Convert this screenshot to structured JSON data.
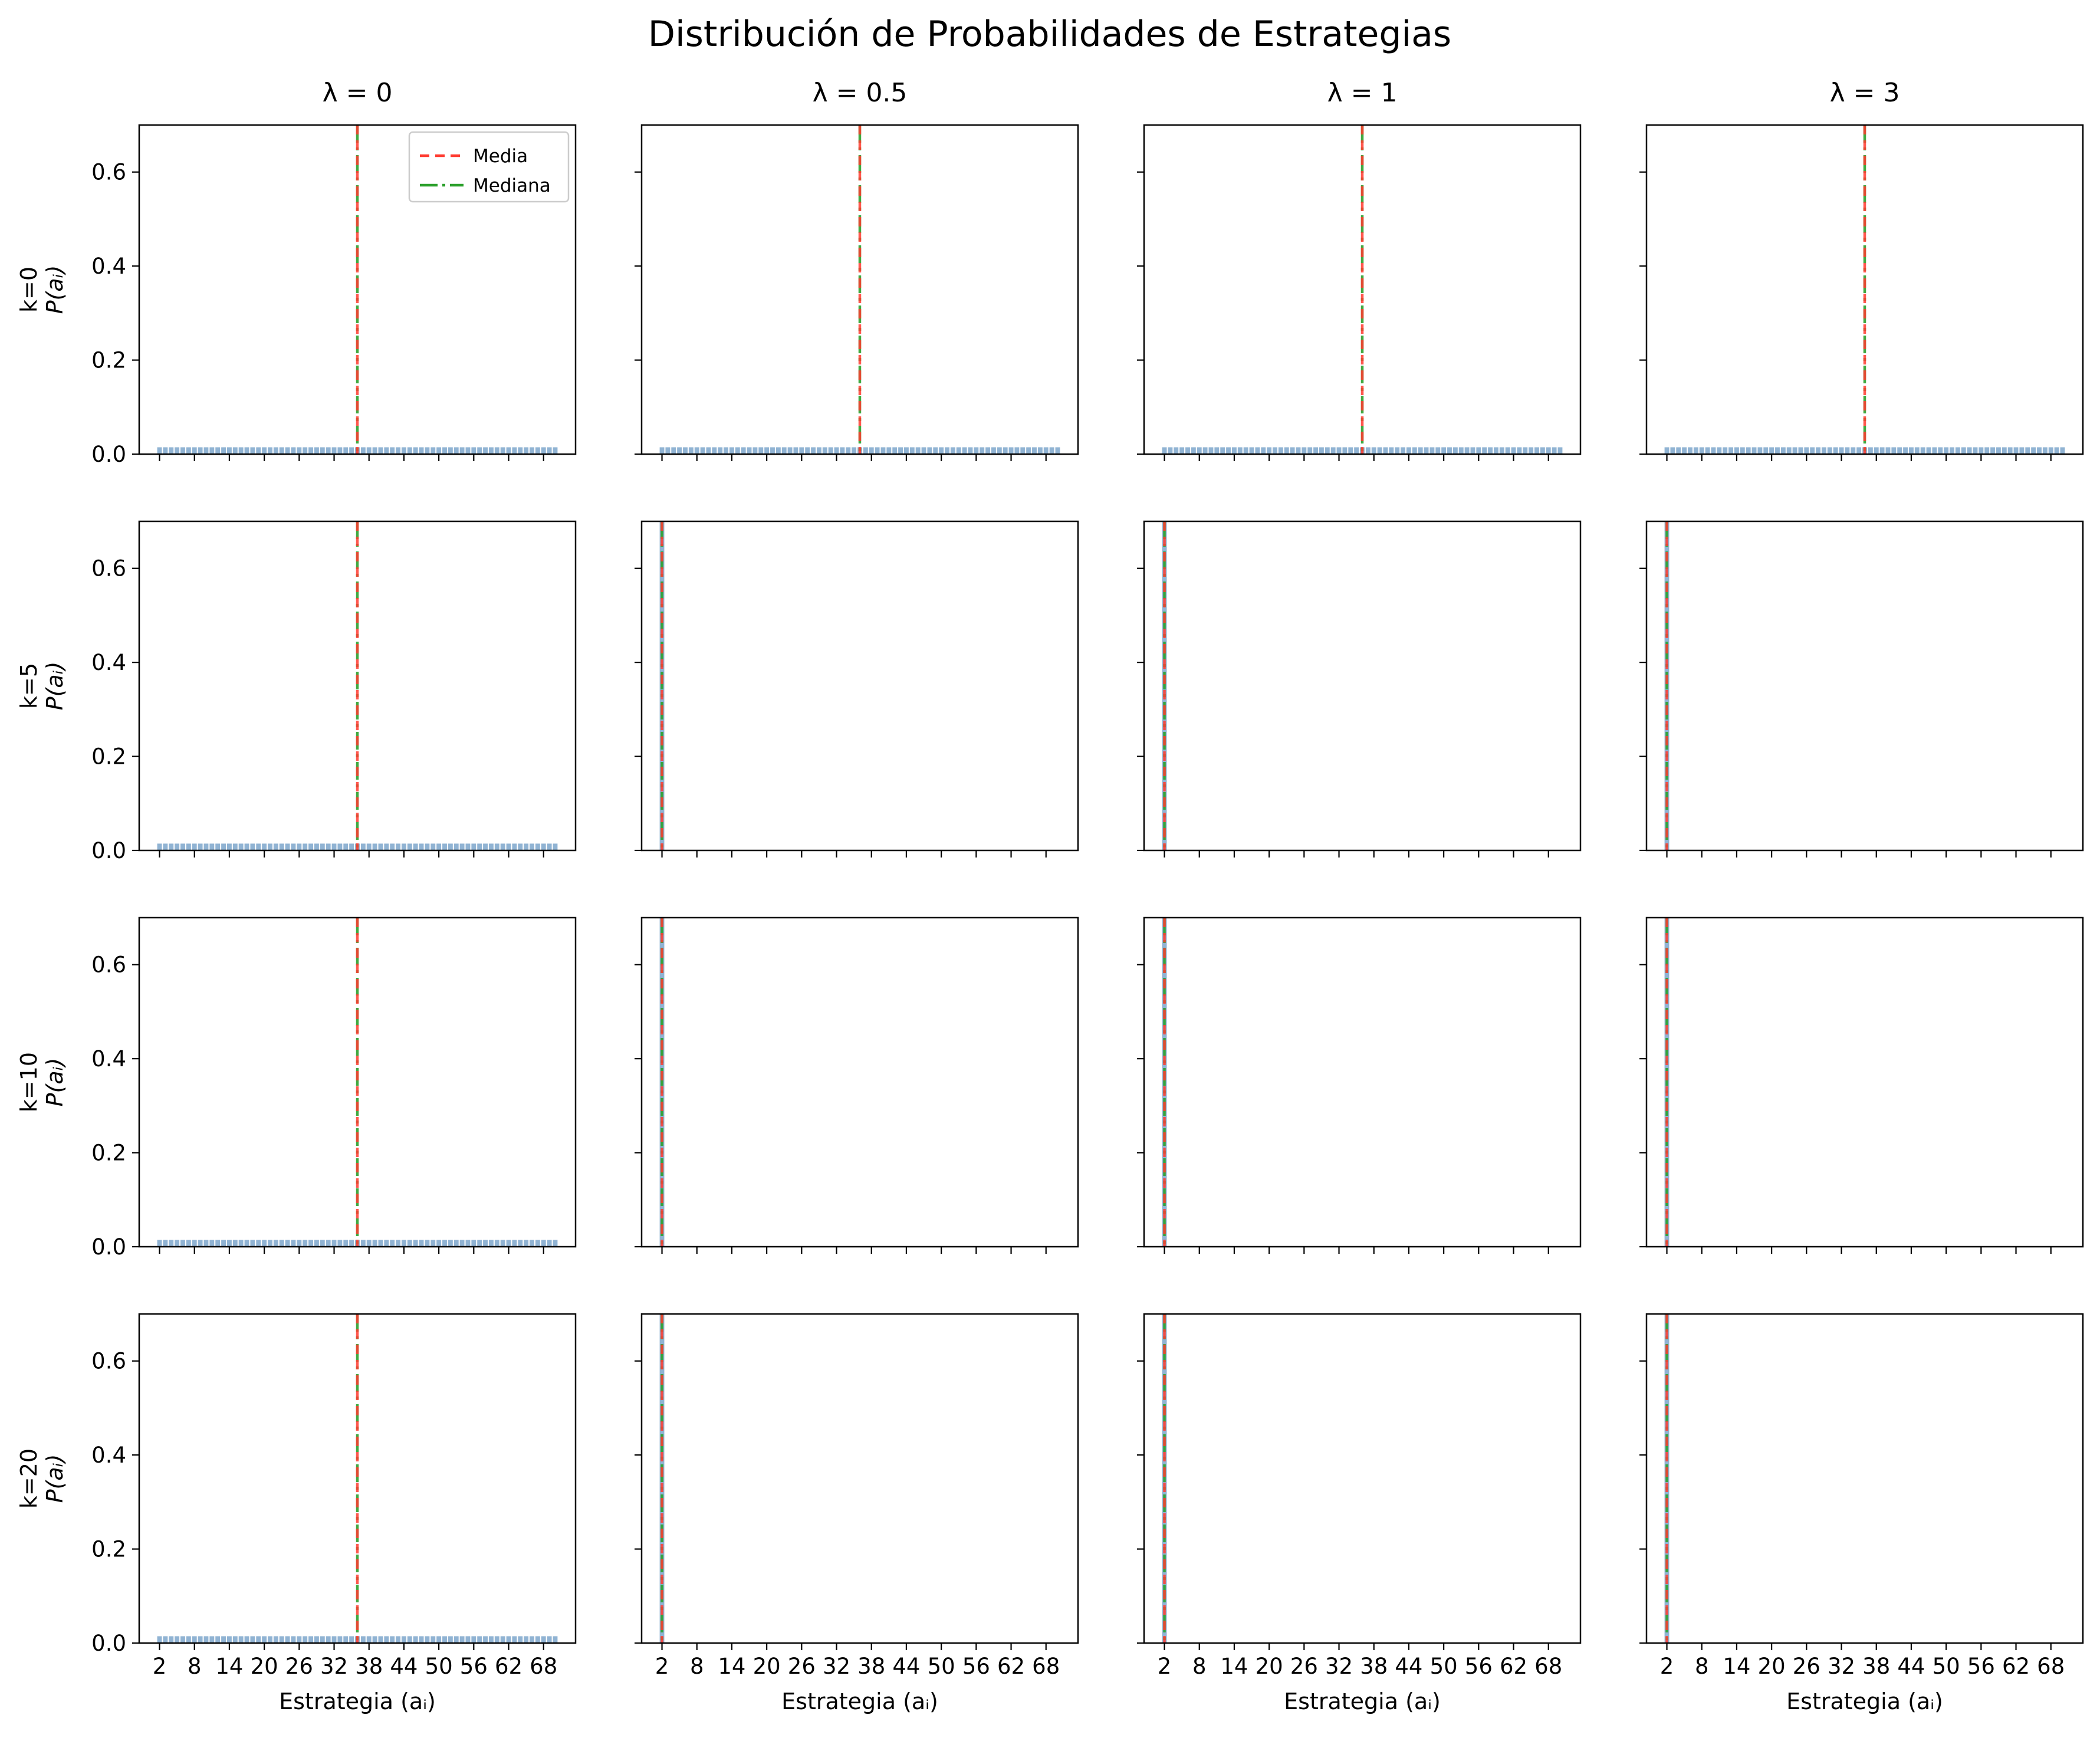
{
  "title": "Distribución de Probabilidades de Estrategias",
  "x_axis_label": "Estrategia (aᵢ)",
  "y_axis_label": "P(aᵢ)",
  "legend": {
    "placement": "upper-right",
    "entries": [
      "Media",
      "Mediana"
    ]
  },
  "colors": {
    "bar": "#6b9ac4",
    "media": "#ff3b30",
    "mediana": "#2ca02c",
    "axes": "#000000"
  },
  "chart_data": {
    "type": "bar",
    "layout": "grid 4x4 small multiples",
    "columns": [
      "λ = 0",
      "λ = 0.5",
      "λ = 1",
      "λ = 3"
    ],
    "rows": [
      "k=0",
      "k=5",
      "k=10",
      "k=20"
    ],
    "x_ticks": [
      2,
      8,
      14,
      20,
      26,
      32,
      38,
      44,
      50,
      56,
      62,
      68
    ],
    "xlim": [
      -1.5,
      73.5
    ],
    "y_ticks": [
      0.0,
      0.2,
      0.4,
      0.6
    ],
    "ylim": [
      0,
      0.7
    ],
    "strategies": {
      "from": 2,
      "to": 70,
      "step": 1
    },
    "distributions": {
      "uniform": {
        "probability": 0.0145,
        "media": 36,
        "mediana": 36
      },
      "concentrated": {
        "strategy": 2,
        "probability": 1.0,
        "media": 2,
        "mediana": 2
      }
    },
    "panels": [
      [
        "uniform",
        "uniform",
        "uniform",
        "uniform"
      ],
      [
        "uniform",
        "concentrated",
        "concentrated",
        "concentrated"
      ],
      [
        "uniform",
        "concentrated",
        "concentrated",
        "concentrated"
      ],
      [
        "uniform",
        "concentrated",
        "concentrated",
        "concentrated"
      ]
    ],
    "series": [
      {
        "name": "Media",
        "style": "dashed"
      },
      {
        "name": "Mediana",
        "style": "dash-dot"
      }
    ],
    "grid": false
  }
}
